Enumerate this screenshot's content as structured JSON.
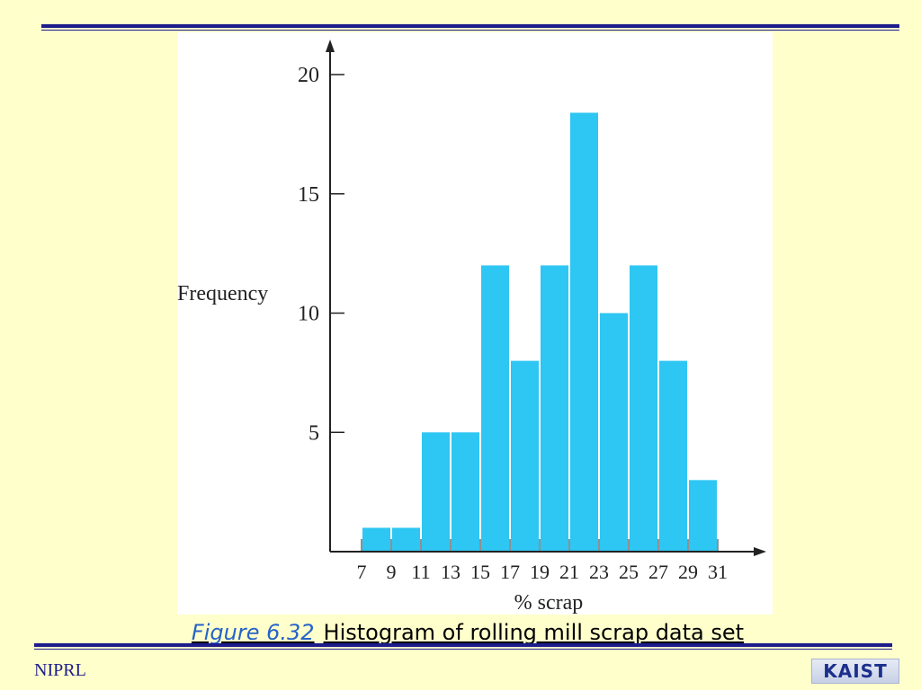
{
  "caption": {
    "figure_ref": "Figure 6.32",
    "text": "Histogram of rolling mill scrap data set"
  },
  "footer": {
    "left_text": "NIPRL",
    "logo_text": "KAIST"
  },
  "colors": {
    "background": "#ffffcc",
    "rule": "#1c1c8c",
    "bar": "#2ec6f2",
    "caption_ref": "#2563c9"
  },
  "chart_data": {
    "type": "bar",
    "title": "",
    "xlabel": "% scrap",
    "ylabel": "Frequency",
    "ylim": [
      0,
      21
    ],
    "yticks": [
      5,
      10,
      15,
      20
    ],
    "bin_edges": [
      7,
      9,
      11,
      13,
      15,
      17,
      19,
      21,
      23,
      25,
      27,
      29,
      31
    ],
    "values": [
      1,
      1,
      5,
      5,
      12,
      8,
      12,
      18.4,
      10,
      12,
      8,
      3
    ],
    "grid": false,
    "legend": "none"
  }
}
